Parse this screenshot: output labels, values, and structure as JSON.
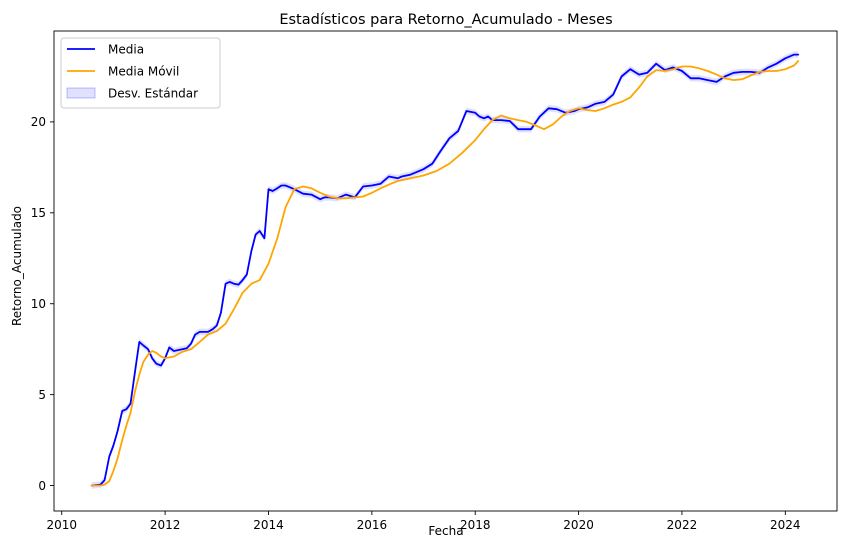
{
  "chart_data": {
    "type": "line",
    "title": "Estadísticos para Retorno_Acumulado - Meses",
    "xlabel": "Fecha",
    "ylabel": "Retorno_Acumulado",
    "xlim": [
      2009.85,
      2025.0
    ],
    "ylim": [
      -1.4,
      25.0
    ],
    "x_ticks": [
      2010,
      2012,
      2014,
      2016,
      2018,
      2020,
      2022,
      2024
    ],
    "x_tick_labels": [
      "2010",
      "2012",
      "2014",
      "2016",
      "2018",
      "2020",
      "2022",
      "2024"
    ],
    "y_ticks": [
      0,
      5,
      10,
      15,
      20
    ],
    "y_tick_labels": [
      "0",
      "5",
      "10",
      "15",
      "20"
    ],
    "grid": false,
    "legend_position": "top-left",
    "legend": [
      {
        "label": "Media",
        "kind": "line",
        "color": "#0000ff"
      },
      {
        "label": "Media Móvil",
        "kind": "line",
        "color": "#ffa500"
      },
      {
        "label": "Desv. Estándar",
        "kind": "band",
        "color": "#0000ff"
      }
    ],
    "series": [
      {
        "name": "Media",
        "color": "#0000ff",
        "x": [
          2010.58,
          2010.75,
          2010.83,
          2010.92,
          2011.0,
          2011.08,
          2011.17,
          2011.25,
          2011.33,
          2011.42,
          2011.5,
          2011.58,
          2011.67,
          2011.75,
          2011.83,
          2011.92,
          2012.0,
          2012.08,
          2012.17,
          2012.25,
          2012.33,
          2012.42,
          2012.5,
          2012.58,
          2012.67,
          2012.75,
          2012.83,
          2012.92,
          2013.0,
          2013.08,
          2013.17,
          2013.25,
          2013.33,
          2013.42,
          2013.5,
          2013.58,
          2013.67,
          2013.75,
          2013.83,
          2013.92,
          2014.0,
          2014.08,
          2014.17,
          2014.25,
          2014.33,
          2014.42,
          2014.5,
          2014.67,
          2014.83,
          2015.0,
          2015.08,
          2015.17,
          2015.33,
          2015.5,
          2015.67,
          2015.83,
          2016.0,
          2016.17,
          2016.33,
          2016.5,
          2016.58,
          2016.75,
          2017.0,
          2017.17,
          2017.33,
          2017.5,
          2017.67,
          2017.83,
          2018.0,
          2018.08,
          2018.17,
          2018.25,
          2018.33,
          2018.5,
          2018.67,
          2018.83,
          2019.0,
          2019.08,
          2019.25,
          2019.42,
          2019.58,
          2019.75,
          2019.92,
          2020.0,
          2020.17,
          2020.33,
          2020.5,
          2020.67,
          2020.83,
          2021.0,
          2021.17,
          2021.33,
          2021.5,
          2021.67,
          2021.83,
          2022.0,
          2022.17,
          2022.33,
          2022.5,
          2022.67,
          2022.83,
          2023.0,
          2023.17,
          2023.33,
          2023.5,
          2023.67,
          2023.83,
          2024.0,
          2024.17,
          2024.25
        ],
        "y": [
          0.0,
          0.05,
          0.3,
          1.6,
          2.2,
          3.0,
          4.1,
          4.2,
          4.5,
          6.3,
          7.9,
          7.7,
          7.5,
          7.0,
          6.7,
          6.6,
          7.0,
          7.6,
          7.4,
          7.45,
          7.5,
          7.55,
          7.8,
          8.3,
          8.45,
          8.45,
          8.45,
          8.6,
          8.8,
          9.5,
          11.1,
          11.2,
          11.1,
          11.05,
          11.3,
          11.6,
          12.9,
          13.8,
          14.0,
          13.6,
          16.3,
          16.2,
          16.35,
          16.5,
          16.5,
          16.4,
          16.3,
          16.05,
          16.0,
          15.75,
          15.85,
          15.85,
          15.8,
          16.0,
          15.85,
          16.45,
          16.5,
          16.6,
          17.0,
          16.9,
          17.0,
          17.1,
          17.4,
          17.7,
          18.4,
          19.1,
          19.5,
          20.6,
          20.5,
          20.3,
          20.2,
          20.3,
          20.1,
          20.1,
          20.05,
          19.6,
          19.6,
          19.6,
          20.3,
          20.75,
          20.7,
          20.5,
          20.6,
          20.7,
          20.8,
          21.0,
          21.1,
          21.5,
          22.5,
          22.9,
          22.6,
          22.7,
          23.2,
          22.85,
          23.0,
          22.8,
          22.4,
          22.4,
          22.3,
          22.2,
          22.5,
          22.7,
          22.75,
          22.75,
          22.7,
          23.0,
          23.2,
          23.5,
          23.7,
          23.7
        ]
      },
      {
        "name": "Media Móvil",
        "color": "#ffa500",
        "x": [
          2010.58,
          2010.75,
          2010.83,
          2010.92,
          2011.0,
          2011.08,
          2011.17,
          2011.25,
          2011.33,
          2011.42,
          2011.5,
          2011.58,
          2011.67,
          2011.75,
          2011.83,
          2011.92,
          2012.0,
          2012.17,
          2012.33,
          2012.5,
          2012.67,
          2012.83,
          2013.0,
          2013.17,
          2013.33,
          2013.5,
          2013.67,
          2013.83,
          2014.0,
          2014.17,
          2014.33,
          2014.5,
          2014.67,
          2014.83,
          2015.0,
          2015.17,
          2015.33,
          2015.5,
          2015.67,
          2015.83,
          2016.0,
          2016.17,
          2016.33,
          2016.5,
          2016.75,
          2017.0,
          2017.25,
          2017.5,
          2017.75,
          2018.0,
          2018.17,
          2018.33,
          2018.5,
          2018.67,
          2018.83,
          2019.0,
          2019.17,
          2019.33,
          2019.5,
          2019.67,
          2019.83,
          2020.0,
          2020.17,
          2020.33,
          2020.5,
          2020.67,
          2020.83,
          2021.0,
          2021.17,
          2021.33,
          2021.5,
          2021.67,
          2021.83,
          2022.0,
          2022.17,
          2022.33,
          2022.5,
          2022.67,
          2022.83,
          2023.0,
          2023.17,
          2023.33,
          2023.5,
          2023.67,
          2023.83,
          2024.0,
          2024.17,
          2024.25
        ],
        "y": [
          0.0,
          0.0,
          0.05,
          0.25,
          0.8,
          1.5,
          2.5,
          3.3,
          4.0,
          5.2,
          6.1,
          6.8,
          7.2,
          7.4,
          7.3,
          7.1,
          7.0,
          7.1,
          7.35,
          7.5,
          7.9,
          8.3,
          8.5,
          8.9,
          9.7,
          10.6,
          11.1,
          11.3,
          12.2,
          13.6,
          15.3,
          16.3,
          16.45,
          16.35,
          16.1,
          15.9,
          15.8,
          15.8,
          15.85,
          15.9,
          16.1,
          16.35,
          16.55,
          16.75,
          16.9,
          17.05,
          17.3,
          17.7,
          18.3,
          19.0,
          19.6,
          20.1,
          20.35,
          20.2,
          20.1,
          20.0,
          19.8,
          19.6,
          19.85,
          20.3,
          20.6,
          20.75,
          20.65,
          20.6,
          20.75,
          20.95,
          21.1,
          21.35,
          21.9,
          22.5,
          22.85,
          22.8,
          22.9,
          23.05,
          23.05,
          22.95,
          22.8,
          22.6,
          22.4,
          22.3,
          22.35,
          22.55,
          22.75,
          22.8,
          22.8,
          22.9,
          23.1,
          23.35
        ]
      }
    ]
  }
}
